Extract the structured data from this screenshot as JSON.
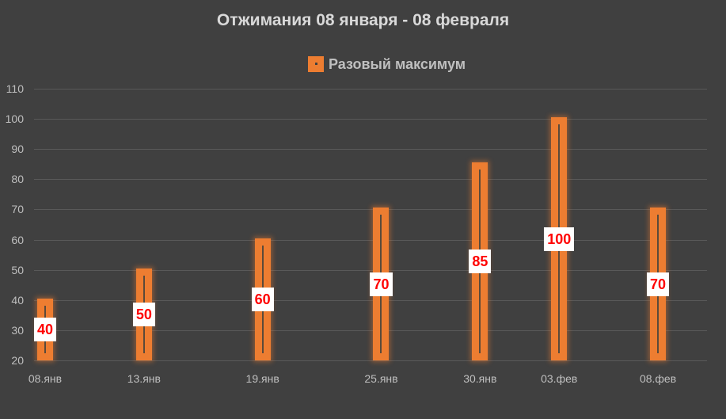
{
  "chart_data": {
    "type": "bar",
    "title": "Отжимания 08 января - 08 февраля",
    "categories": [
      "08.янв",
      "13.янв",
      "19.янв",
      "25.янв",
      "30.янв",
      "03.фев",
      "08.фев"
    ],
    "day_offsets": [
      0,
      5,
      11,
      17,
      22,
      26,
      31
    ],
    "series": [
      {
        "name": "Разовый максимум",
        "values": [
          40,
          50,
          60,
          70,
          85,
          100,
          70
        ],
        "color": "#ed7d31"
      }
    ],
    "data_labels": [
      "40",
      "50",
      "60",
      "70",
      "85",
      "100",
      "70"
    ],
    "xlabel": "",
    "ylabel": "",
    "ylim": [
      20,
      110
    ],
    "yticks": [
      "110",
      "100",
      "90",
      "80",
      "70",
      "60",
      "50",
      "40",
      "30",
      "20"
    ],
    "ytick_values": [
      110,
      100,
      90,
      80,
      70,
      60,
      50,
      40,
      30,
      20
    ],
    "grid": true,
    "legend_position": "top"
  },
  "colors": {
    "background": "#404040",
    "bar": "#ed7d31",
    "label_text": "#ff0000",
    "label_bg": "#ffffff",
    "axis_text": "#bfbfbf",
    "gridline": "#595959"
  }
}
